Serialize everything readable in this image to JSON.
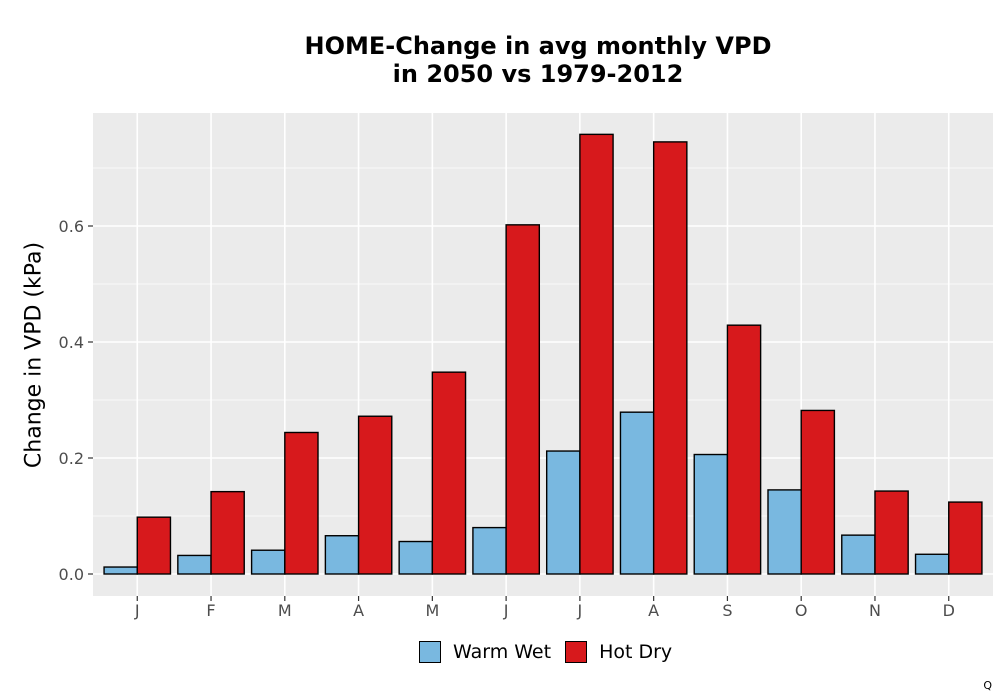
{
  "chart_data": {
    "type": "bar",
    "title_line1": "HOME-Change in avg monthly VPD",
    "title_line2": "in 2050 vs 1979-2012",
    "xlabel": "",
    "ylabel": "Change in VPD (kPa)",
    "categories": [
      "J",
      "F",
      "M",
      "A",
      "M",
      "J",
      "J",
      "A",
      "S",
      "O",
      "N",
      "D"
    ],
    "series": [
      {
        "name": "Warm Wet",
        "color": "#79B8E0",
        "values": [
          0.012,
          0.032,
          0.041,
          0.066,
          0.056,
          0.08,
          0.212,
          0.279,
          0.206,
          0.145,
          0.067,
          0.034
        ]
      },
      {
        "name": "Hot Dry",
        "color": "#D7191C",
        "values": [
          0.098,
          0.142,
          0.244,
          0.272,
          0.348,
          0.602,
          0.758,
          0.745,
          0.429,
          0.282,
          0.143,
          0.124
        ]
      }
    ],
    "ylim": [
      -0.038,
      0.79
    ],
    "yticks": [
      0.0,
      0.2,
      0.4,
      0.6
    ],
    "ytick_labels": [
      "0.0",
      "0.2",
      "0.4",
      "0.6"
    ],
    "grid": true,
    "panel_background": "#EBEBEB",
    "legend_position": "bottom"
  },
  "footer": {
    "corner_mark": "Q"
  }
}
